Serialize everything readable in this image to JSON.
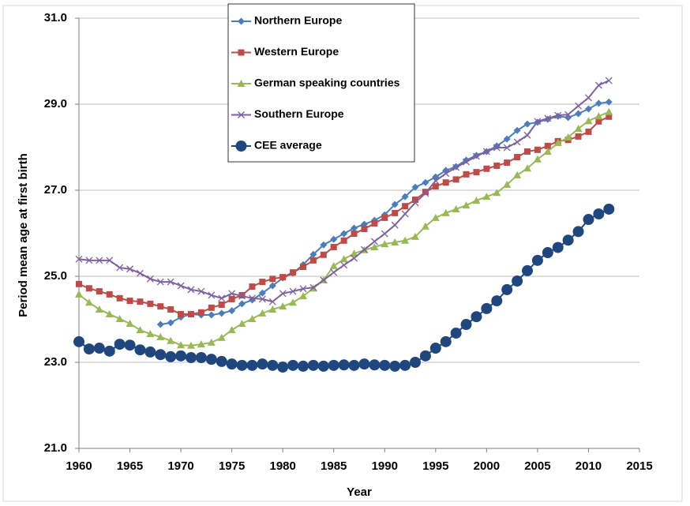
{
  "chart_data": {
    "type": "line",
    "x_label": "Year",
    "y_label": "Period mean age at first birth",
    "x": [
      1960,
      1961,
      1962,
      1963,
      1964,
      1965,
      1966,
      1967,
      1968,
      1969,
      1970,
      1971,
      1972,
      1973,
      1974,
      1975,
      1976,
      1977,
      1978,
      1979,
      1980,
      1981,
      1982,
      1983,
      1984,
      1985,
      1986,
      1987,
      1988,
      1989,
      1990,
      1991,
      1992,
      1993,
      1994,
      1995,
      1996,
      1997,
      1998,
      1999,
      2000,
      2001,
      2002,
      2003,
      2004,
      2005,
      2006,
      2007,
      2008,
      2009,
      2010,
      2011,
      2012
    ],
    "xlim": [
      1960,
      2015
    ],
    "xticks": [
      1960,
      1965,
      1970,
      1975,
      1980,
      1985,
      1990,
      1995,
      2000,
      2005,
      2010,
      2015
    ],
    "ylim": [
      21,
      31
    ],
    "yticks": [
      {
        "value": 21,
        "label": "21.0"
      },
      {
        "value": 23,
        "label": "23.0"
      },
      {
        "value": 25,
        "label": "25.0"
      },
      {
        "value": 27,
        "label": "27.0"
      },
      {
        "value": 29,
        "label": "29.0"
      },
      {
        "value": 31,
        "label": "31.0"
      }
    ],
    "grid": true,
    "legend": "upper center",
    "series": [
      {
        "name": "Northern Europe",
        "color": "#4a7ebb",
        "marker": "diamond",
        "values": [
          null,
          null,
          null,
          null,
          null,
          null,
          null,
          null,
          23.88,
          23.92,
          24.05,
          24.12,
          24.1,
          24.1,
          24.14,
          24.2,
          24.36,
          24.45,
          24.61,
          24.78,
          24.96,
          25.07,
          25.27,
          25.51,
          25.73,
          25.86,
          25.99,
          26.12,
          26.21,
          26.3,
          26.43,
          26.67,
          26.85,
          27.07,
          27.18,
          27.31,
          27.46,
          27.55,
          27.7,
          27.81,
          27.9,
          28.03,
          28.19,
          28.39,
          28.54,
          28.58,
          28.65,
          28.72,
          28.69,
          28.78,
          28.89,
          29.02,
          29.05
        ]
      },
      {
        "name": "Western Europe",
        "color": "#be4b48",
        "marker": "square",
        "values": [
          24.82,
          24.72,
          24.65,
          24.58,
          24.49,
          24.43,
          24.41,
          24.36,
          24.3,
          24.23,
          24.12,
          24.12,
          24.16,
          24.27,
          24.34,
          24.47,
          24.56,
          24.76,
          24.87,
          24.94,
          24.98,
          25.09,
          25.22,
          25.37,
          25.5,
          25.68,
          25.83,
          25.99,
          26.1,
          26.23,
          26.36,
          26.47,
          26.63,
          26.78,
          26.96,
          27.09,
          27.18,
          27.25,
          27.37,
          27.42,
          27.5,
          27.57,
          27.64,
          27.77,
          27.9,
          27.94,
          28.03,
          28.14,
          28.17,
          28.25,
          28.36,
          28.6,
          28.71
        ]
      },
      {
        "name": "German speaking countries",
        "color": "#98b954",
        "marker": "triangle",
        "values": [
          24.58,
          24.39,
          24.23,
          24.12,
          24.01,
          23.9,
          23.75,
          23.66,
          23.59,
          23.5,
          23.4,
          23.39,
          23.42,
          23.46,
          23.57,
          23.75,
          23.9,
          24.01,
          24.14,
          24.23,
          24.3,
          24.39,
          24.54,
          24.72,
          24.91,
          25.24,
          25.4,
          25.53,
          25.61,
          25.68,
          25.75,
          25.79,
          25.83,
          25.92,
          26.16,
          26.36,
          26.47,
          26.56,
          26.65,
          26.76,
          26.85,
          26.94,
          27.13,
          27.35,
          27.51,
          27.72,
          27.9,
          28.1,
          28.23,
          28.43,
          28.61,
          28.72,
          28.82
        ]
      },
      {
        "name": "Southern Europe",
        "color": "#7d60a0",
        "marker": "x",
        "values": [
          25.4,
          25.37,
          25.37,
          25.37,
          25.2,
          25.17,
          25.07,
          24.94,
          24.87,
          24.87,
          24.78,
          24.69,
          24.65,
          24.56,
          24.49,
          24.6,
          24.54,
          24.49,
          24.47,
          24.41,
          24.6,
          24.65,
          24.71,
          24.74,
          24.91,
          25.09,
          25.26,
          25.42,
          25.62,
          25.81,
          25.99,
          26.19,
          26.45,
          26.71,
          26.93,
          27.22,
          27.39,
          27.53,
          27.66,
          27.79,
          27.9,
          27.99,
          27.99,
          28.12,
          28.28,
          28.6,
          28.67,
          28.74,
          28.76,
          28.96,
          29.15,
          29.44,
          29.55
        ]
      },
      {
        "name": "CEE average",
        "color": "#1f477d",
        "marker": "circle",
        "values": [
          23.48,
          23.31,
          23.33,
          23.26,
          23.42,
          23.4,
          23.29,
          23.24,
          23.18,
          23.13,
          23.15,
          23.11,
          23.11,
          23.07,
          23.02,
          22.96,
          22.93,
          22.93,
          22.96,
          22.93,
          22.89,
          22.93,
          22.91,
          22.93,
          22.91,
          22.93,
          22.94,
          22.93,
          22.96,
          22.94,
          22.93,
          22.91,
          22.93,
          23.0,
          23.15,
          23.33,
          23.48,
          23.68,
          23.88,
          24.06,
          24.25,
          24.43,
          24.69,
          24.89,
          25.13,
          25.37,
          25.55,
          25.67,
          25.84,
          26.04,
          26.32,
          26.45,
          26.56
        ]
      }
    ]
  }
}
